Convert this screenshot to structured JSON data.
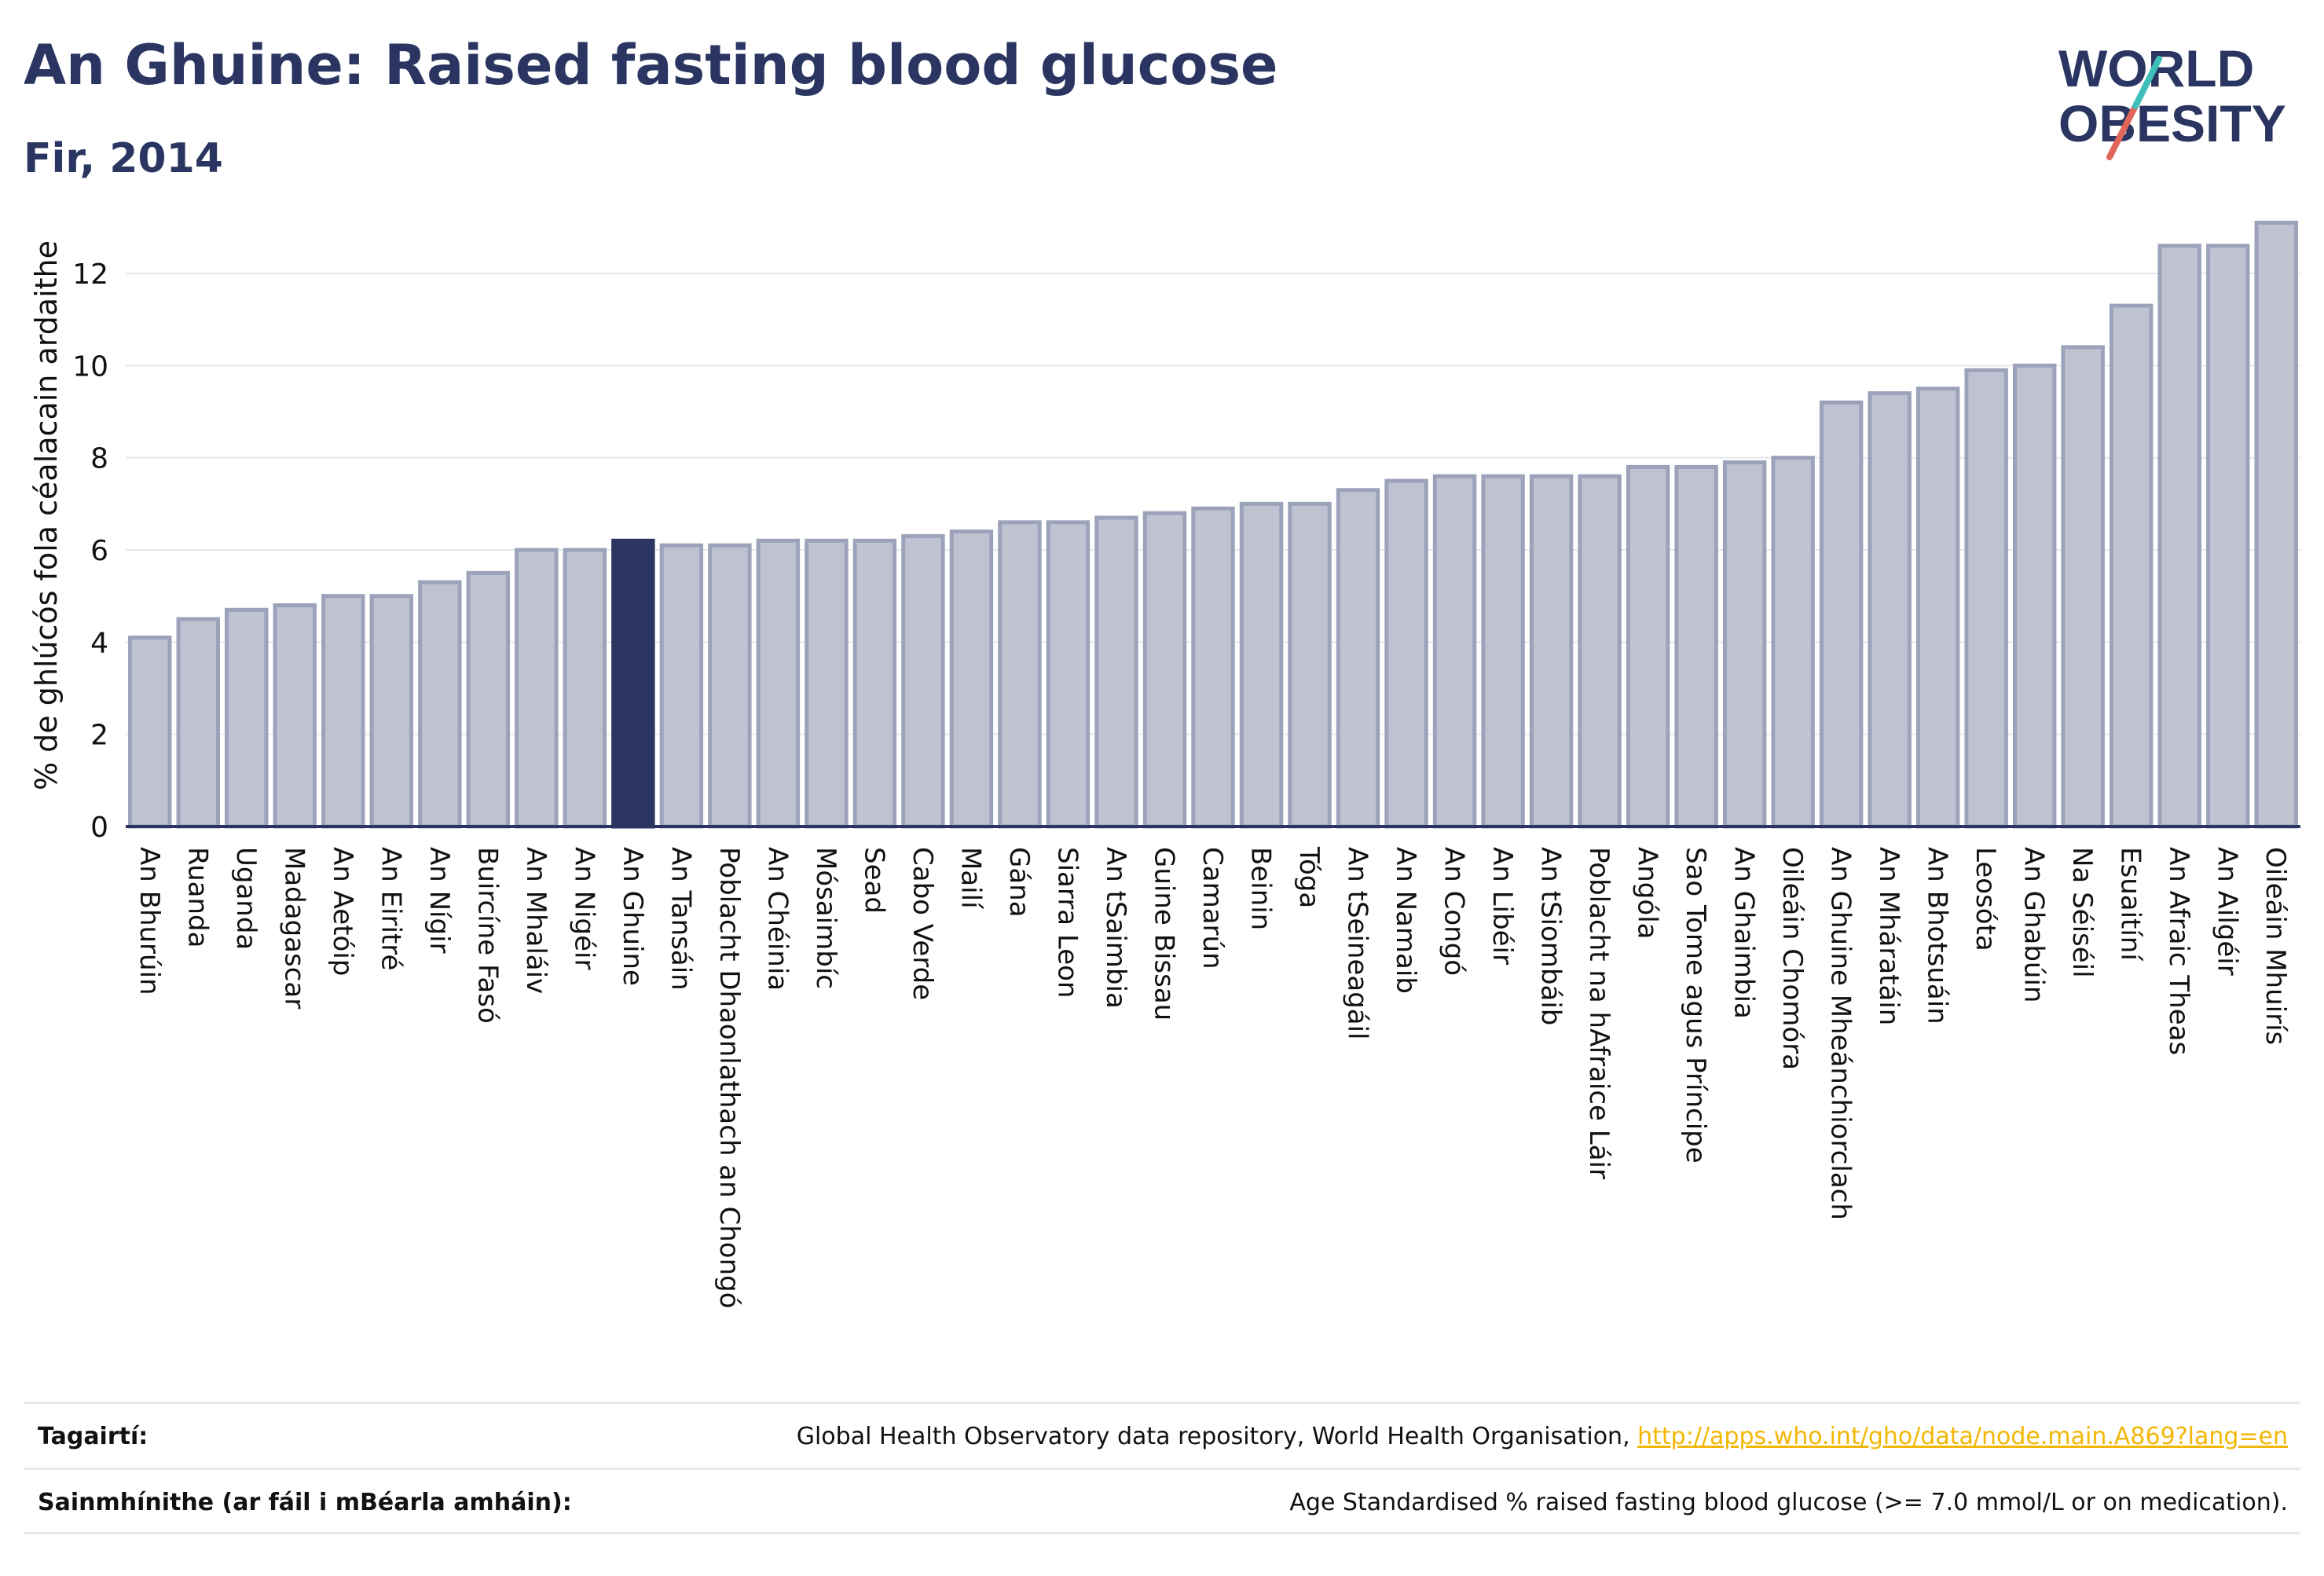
{
  "header": {
    "title": "An Ghuine: Raised fasting blood glucose",
    "subtitle": "Fir, 2014"
  },
  "logo": {
    "line1": "WORLD",
    "line2": "OBESITY",
    "colors": {
      "text": "#2a3561",
      "slash_teal": "#3fbfb9",
      "slash_red": "#e0665a"
    }
  },
  "footer": {
    "references_label": "Tagairtí:",
    "references_text": "Global Health Observatory data repository, World Health Organisation, ",
    "references_link": "http://apps.who.int/gho/data/node.main.A869?lang=en",
    "definitions_label": "Sainmhínithe (ar fáil i mBéarla amháin):",
    "definitions_text": "Age Standardised % raised fasting blood glucose (>= 7.0 mmol/L or on medication)."
  },
  "chart_data": {
    "type": "bar",
    "title": "An Ghuine: Raised fasting blood glucose",
    "subtitle": "Fir, 2014",
    "xlabel": "",
    "ylabel": "% de ghlúcós fola céalacain ardaithe",
    "ylim": [
      0,
      13.5
    ],
    "yticks": [
      0,
      2,
      4,
      6,
      8,
      10,
      12
    ],
    "grid": true,
    "highlight": "An Ghuine",
    "colors": {
      "bar": "#bfc3d1",
      "bar_border": "#9ca2b9",
      "highlight": "#2a3561",
      "axis": "#2a3561",
      "grid": "#e6e8ee"
    },
    "categories": [
      "An Bhurúin",
      "Ruanda",
      "Uganda",
      "Madagascar",
      "An Aetóip",
      "An Eiritré",
      "An Nígir",
      "Buircíne Fasó",
      "An Mhaláiv",
      "An Nigéir",
      "An Ghuine",
      "An Tansáin",
      "Poblacht Dhaonlathach an Chongó",
      "An Chéinia",
      "Mósaimbíc",
      "Sead",
      "Cabo Verde",
      "Mailí",
      "Gána",
      "Siarra Leon",
      "An tSaimbia",
      "Guine Bissau",
      "Camarún",
      "Beinin",
      "Tóga",
      "An tSeineagáil",
      "An Namaib",
      "An Congó",
      "An Libéir",
      "An tSiombáib",
      "Poblacht na hAfraice Láir",
      "Angóla",
      "Sao Tome agus Príncipe",
      "An Ghaimbia",
      "Oileáin Chomóra",
      "An Ghuine Mheánchiorclach",
      "An Mháratáin",
      "An Bhotsuáin",
      "Leosóta",
      "An Ghabúin",
      "Na Séiséil",
      "Esuaitíní",
      "An Afraic Theas",
      "An Ailgéir",
      "Oileáin Mhuirís"
    ],
    "values": [
      4.1,
      4.5,
      4.7,
      4.8,
      5.0,
      5.0,
      5.3,
      5.5,
      6.0,
      6.0,
      6.2,
      6.1,
      6.1,
      6.2,
      6.2,
      6.2,
      6.3,
      6.4,
      6.6,
      6.6,
      6.7,
      6.8,
      6.9,
      7.0,
      7.0,
      7.3,
      7.5,
      7.6,
      7.6,
      7.6,
      7.6,
      7.8,
      7.8,
      7.9,
      8.0,
      9.2,
      9.4,
      9.5,
      9.9,
      10.0,
      10.4,
      11.3,
      12.6,
      12.6,
      13.1
    ]
  }
}
